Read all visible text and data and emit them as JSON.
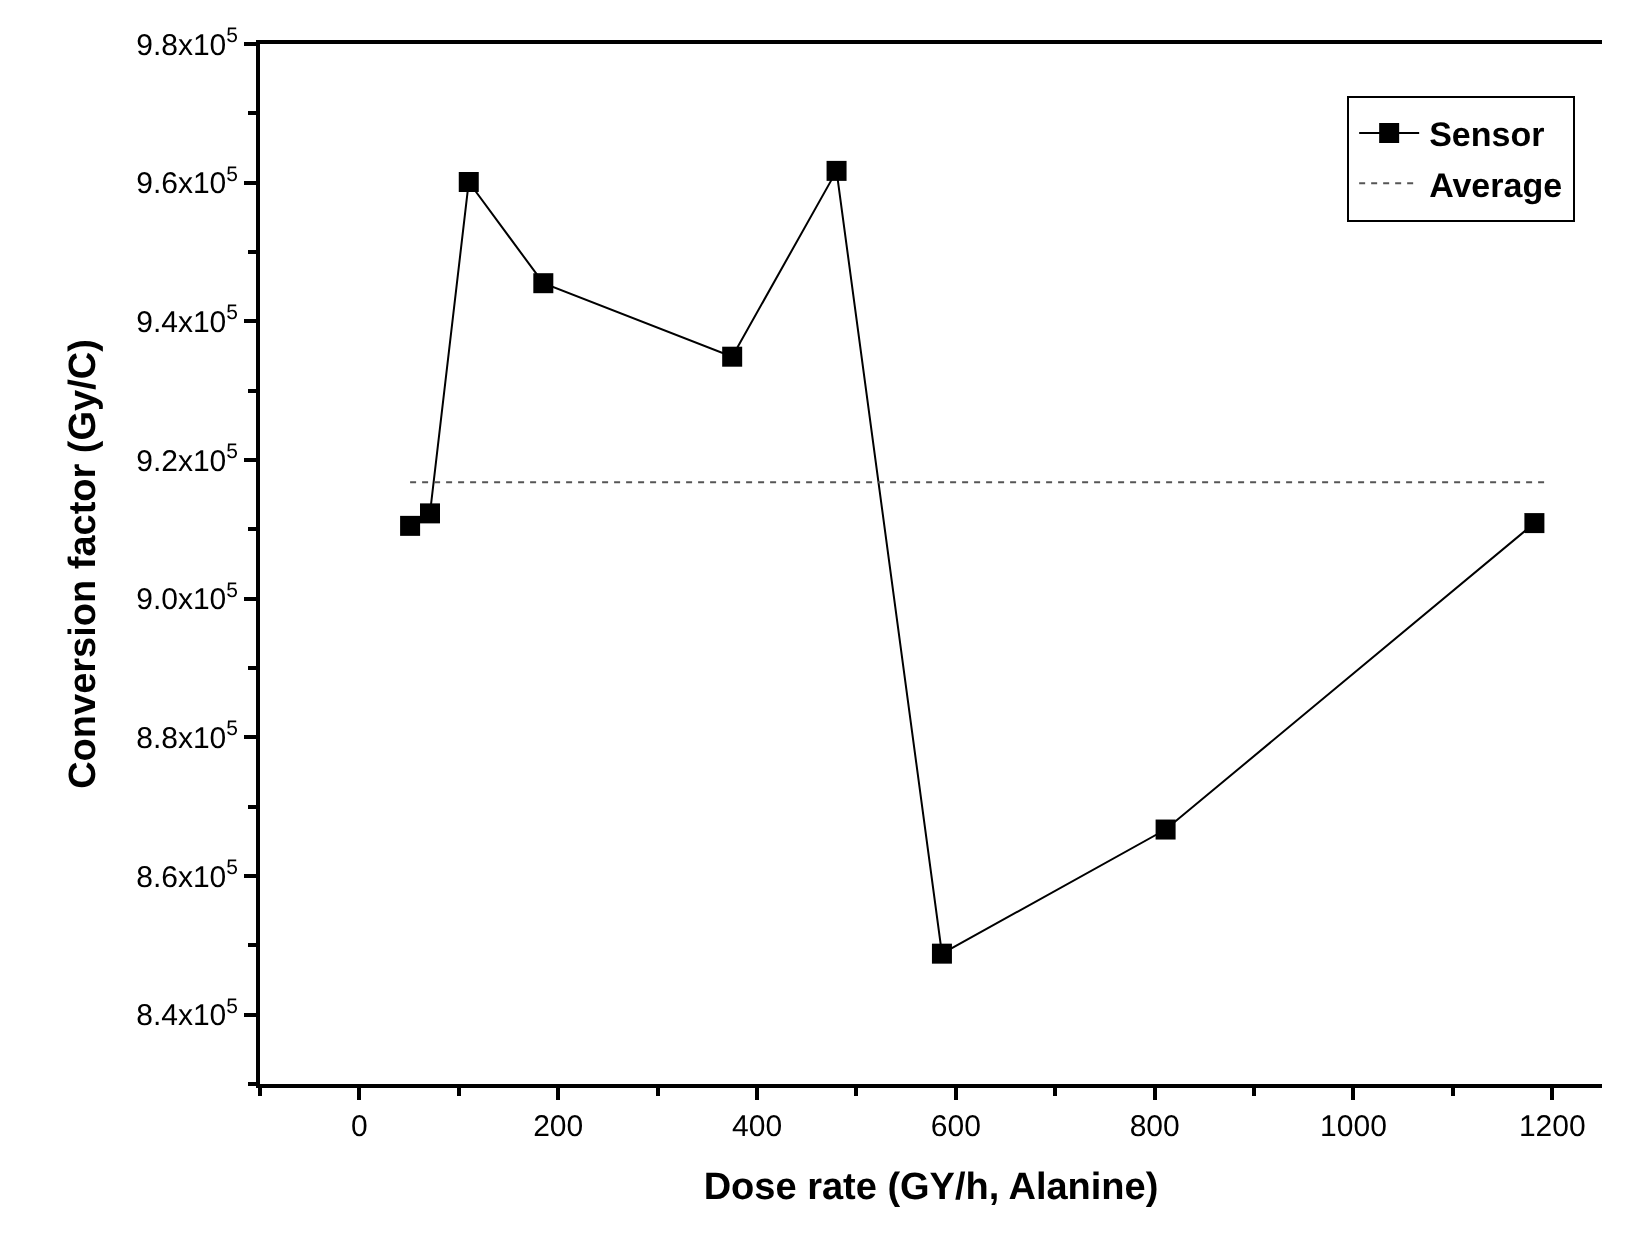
{
  "chart_data": {
    "type": "line",
    "xlabel": "Dose rate (GY/h, Alanine)",
    "ylabel": "Conversion factor (Gy/C)",
    "xlim": [
      -100,
      1250
    ],
    "xticks": [
      0,
      200,
      400,
      600,
      800,
      1000,
      1200
    ],
    "ylim": [
      830000,
      980000
    ],
    "yticks": [
      {
        "value": 840000,
        "label": "8.4x10$^{5}$"
      },
      {
        "value": 860000,
        "label": "8.6x10$^{5}$"
      },
      {
        "value": 880000,
        "label": "8.8x10$^{5}$"
      },
      {
        "value": 900000,
        "label": "9.0x10$^{5}$"
      },
      {
        "value": 920000,
        "label": "9.2x10$^{5}$"
      },
      {
        "value": 940000,
        "label": "9.4x10$^{5}$"
      },
      {
        "value": 960000,
        "label": "9.6x10$^{5}$"
      },
      {
        "value": 980000,
        "label": "9.8x10$^{5}$"
      }
    ],
    "legend": "top right",
    "series": [
      {
        "name": "Sensor",
        "color": "#000000",
        "marker": "square",
        "line_style": "solid",
        "x": [
          51,
          71,
          110,
          185,
          375,
          480,
          586,
          811,
          1182
        ],
        "values": [
          910500,
          912300,
          960100,
          945500,
          934900,
          961700,
          848800,
          866700,
          910900
        ]
      },
      {
        "name": "Average",
        "color": "#555555",
        "marker": "none",
        "line_style": "dotted",
        "x": [
          51,
          1195
        ],
        "values": [
          916800,
          916800
        ]
      }
    ]
  }
}
